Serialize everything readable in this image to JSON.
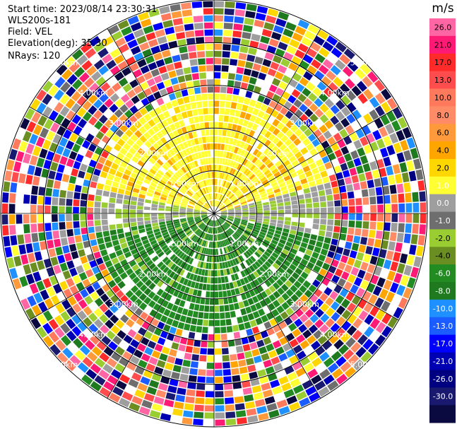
{
  "header": {
    "start_time": "Start time: 2023/08/14 23:30:31",
    "instrument": "WLS200s-181",
    "field": "Field: VEL",
    "elevation": "Elevation(deg): 35.30",
    "nrays": "NRays: 120"
  },
  "range_rings": [
    {
      "range_km": 1.0,
      "label": "1.00km"
    },
    {
      "range_km": 2.0,
      "label": "2.00km"
    },
    {
      "range_km": 3.0,
      "label": "3.00km"
    },
    {
      "range_km": 4.0,
      "label": "4.00km"
    },
    {
      "range_km": 5.0,
      "label": "5.00km"
    }
  ],
  "max_range_km": 5.0,
  "n_rays": 120,
  "colorbar": {
    "unit": "m/s",
    "ticks": [
      "26.0",
      "21.0",
      "17.0",
      "13.0",
      "10.0",
      "8.0",
      "6.0",
      "4.0",
      "2.0",
      "1.0",
      "0.0",
      "-1.0",
      "-2.0",
      "-4.0",
      "-6.0",
      "-8.0",
      "-10.0",
      "-13.0",
      "-17.0",
      "-21.0",
      "-26.0",
      "-30.0"
    ],
    "colors": [
      "#ff66a3",
      "#ff1a75",
      "#ff2a2a",
      "#ff4d4d",
      "#ff7a5c",
      "#ff8c66",
      "#ff9a3c",
      "#ffa500",
      "#ffd700",
      "#ffff33",
      "#9e9e9e",
      "#6e6e6e",
      "#9acd32",
      "#6b8e23",
      "#228b22",
      "#1f7a1f",
      "#1e90ff",
      "#1a5cff",
      "#0000ff",
      "#0000b3",
      "#000080",
      "#191970",
      "#0a0a40"
    ]
  }
}
